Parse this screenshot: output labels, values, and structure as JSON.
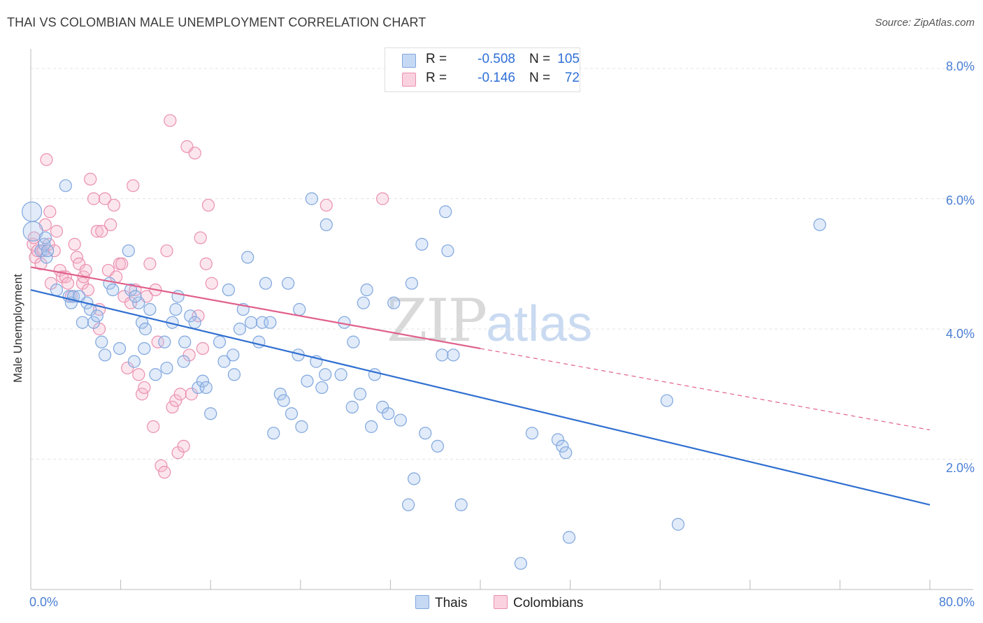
{
  "header": {
    "title": "THAI VS COLOMBIAN MALE UNEMPLOYMENT CORRELATION CHART",
    "source": "Source: ZipAtlas.com"
  },
  "watermark": {
    "zip": "ZIP",
    "atlas": "atlas"
  },
  "legend": {
    "rows": [
      {
        "r_label": "R =",
        "r_value": "-0.508",
        "n_label": "N =",
        "n_value": "105",
        "color": "#a9c6ee"
      },
      {
        "r_label": "R =",
        "r_value": "-0.146",
        "n_label": "N =",
        "n_value": "72",
        "color": "#f5b8cc"
      }
    ],
    "bottom": [
      {
        "label": "Thais",
        "color": "#a9c6ee"
      },
      {
        "label": "Colombians",
        "color": "#f5b8cc"
      }
    ]
  },
  "colors": {
    "thai_fill": "rgba(169,198,238,0.35)",
    "thai_stroke": "#7fa6de",
    "thai_line": "#2f6fd0",
    "col_fill": "rgba(245,184,204,0.35)",
    "col_stroke": "#ea8fb0",
    "col_line": "#e0608a",
    "grid": "#e3e3e3",
    "tick_text": "#4a7fd4"
  },
  "chart_data": {
    "type": "scatter",
    "title": "THAI VS COLOMBIAN MALE UNEMPLOYMENT CORRELATION CHART",
    "xlabel": "",
    "ylabel": "Male Unemployment",
    "xlim": [
      0,
      80
    ],
    "ylim": [
      0,
      8.3
    ],
    "x_tick_labels": [
      "0.0%",
      "80.0%"
    ],
    "y_ticks": [
      2,
      4,
      6,
      8
    ],
    "y_tick_labels": [
      "2.0%",
      "4.0%",
      "6.0%",
      "8.0%"
    ],
    "grid": true,
    "legend_position": "top-center",
    "series": [
      {
        "name": "Thais",
        "r": -0.508,
        "n": 105,
        "trend": {
          "x": [
            0,
            80
          ],
          "y": [
            4.6,
            1.3
          ],
          "dashed_from": null
        },
        "points": [
          [
            0.1,
            5.8
          ],
          [
            0.2,
            5.5
          ],
          [
            0.9,
            5.2
          ],
          [
            1.2,
            5.3
          ],
          [
            1.3,
            5.4
          ],
          [
            1.4,
            5.1
          ],
          [
            1.5,
            5.2
          ],
          [
            2.3,
            4.6
          ],
          [
            3.1,
            6.2
          ],
          [
            3.4,
            4.5
          ],
          [
            3.6,
            4.4
          ],
          [
            3.8,
            4.5
          ],
          [
            4.3,
            4.5
          ],
          [
            4.6,
            4.1
          ],
          [
            5.0,
            4.4
          ],
          [
            5.3,
            4.3
          ],
          [
            5.6,
            4.1
          ],
          [
            6.3,
            3.8
          ],
          [
            6.6,
            3.6
          ],
          [
            7.0,
            4.7
          ],
          [
            7.3,
            4.6
          ],
          [
            7.9,
            3.7
          ],
          [
            8.7,
            5.2
          ],
          [
            8.9,
            4.6
          ],
          [
            9.2,
            3.5
          ],
          [
            9.6,
            4.4
          ],
          [
            9.9,
            4.1
          ],
          [
            10.1,
            3.7
          ],
          [
            10.2,
            4.0
          ],
          [
            10.6,
            4.3
          ],
          [
            11.1,
            3.3
          ],
          [
            11.9,
            3.8
          ],
          [
            12.1,
            3.4
          ],
          [
            12.6,
            4.1
          ],
          [
            13.1,
            4.5
          ],
          [
            13.6,
            3.5
          ],
          [
            13.7,
            3.8
          ],
          [
            14.2,
            4.2
          ],
          [
            14.6,
            4.1
          ],
          [
            14.9,
            3.1
          ],
          [
            15.3,
            3.2
          ],
          [
            15.6,
            3.1
          ],
          [
            16.0,
            2.7
          ],
          [
            16.8,
            3.8
          ],
          [
            17.2,
            3.5
          ],
          [
            17.6,
            4.6
          ],
          [
            18.0,
            3.6
          ],
          [
            18.6,
            4.0
          ],
          [
            18.9,
            4.3
          ],
          [
            19.3,
            5.1
          ],
          [
            19.6,
            4.1
          ],
          [
            20.3,
            3.8
          ],
          [
            20.6,
            4.1
          ],
          [
            20.9,
            4.7
          ],
          [
            21.3,
            4.1
          ],
          [
            21.6,
            2.4
          ],
          [
            22.2,
            3.0
          ],
          [
            22.5,
            2.9
          ],
          [
            22.9,
            4.7
          ],
          [
            23.2,
            2.7
          ],
          [
            23.8,
            3.6
          ],
          [
            23.9,
            4.3
          ],
          [
            24.1,
            2.5
          ],
          [
            24.6,
            3.2
          ],
          [
            25.0,
            6.0
          ],
          [
            25.4,
            3.5
          ],
          [
            25.9,
            3.1
          ],
          [
            26.2,
            3.3
          ],
          [
            26.3,
            5.6
          ],
          [
            27.6,
            3.3
          ],
          [
            27.9,
            4.1
          ],
          [
            28.6,
            2.8
          ],
          [
            28.7,
            3.8
          ],
          [
            29.3,
            3.0
          ],
          [
            29.6,
            4.4
          ],
          [
            29.9,
            4.6
          ],
          [
            30.3,
            2.5
          ],
          [
            30.6,
            3.3
          ],
          [
            31.3,
            2.8
          ],
          [
            31.8,
            2.7
          ],
          [
            32.3,
            4.4
          ],
          [
            32.9,
            2.6
          ],
          [
            33.6,
            1.3
          ],
          [
            33.9,
            4.7
          ],
          [
            34.1,
            1.7
          ],
          [
            34.8,
            5.3
          ],
          [
            35.1,
            2.4
          ],
          [
            36.2,
            2.2
          ],
          [
            36.6,
            3.6
          ],
          [
            36.9,
            5.8
          ],
          [
            37.1,
            5.2
          ],
          [
            37.6,
            3.6
          ],
          [
            38.3,
            1.3
          ],
          [
            43.6,
            0.4
          ],
          [
            44.6,
            2.4
          ],
          [
            46.9,
            2.3
          ],
          [
            47.3,
            2.2
          ],
          [
            47.6,
            2.1
          ],
          [
            47.9,
            0.8
          ],
          [
            56.6,
            2.9
          ],
          [
            57.6,
            1.0
          ],
          [
            70.2,
            5.6
          ],
          [
            5.9,
            4.2
          ],
          [
            12.9,
            4.3
          ],
          [
            18.1,
            3.3
          ],
          [
            9.3,
            4.5
          ]
        ]
      },
      {
        "name": "Colombians",
        "r": -0.146,
        "n": 72,
        "trend": {
          "x": [
            0,
            80
          ],
          "y": [
            4.95,
            2.45
          ],
          "dashed_from": 40
        },
        "points": [
          [
            0.2,
            5.3
          ],
          [
            0.3,
            5.4
          ],
          [
            0.4,
            5.1
          ],
          [
            0.6,
            5.2
          ],
          [
            0.9,
            5.0
          ],
          [
            1.1,
            5.2
          ],
          [
            1.3,
            5.6
          ],
          [
            1.4,
            6.6
          ],
          [
            1.6,
            5.3
          ],
          [
            1.7,
            5.8
          ],
          [
            1.8,
            4.7
          ],
          [
            2.1,
            5.2
          ],
          [
            2.3,
            5.5
          ],
          [
            2.6,
            4.9
          ],
          [
            2.8,
            4.8
          ],
          [
            3.1,
            4.8
          ],
          [
            3.3,
            4.7
          ],
          [
            3.6,
            4.5
          ],
          [
            3.9,
            5.3
          ],
          [
            4.1,
            5.1
          ],
          [
            4.3,
            5.0
          ],
          [
            4.6,
            4.7
          ],
          [
            4.7,
            4.8
          ],
          [
            4.9,
            4.9
          ],
          [
            5.1,
            4.6
          ],
          [
            5.3,
            6.3
          ],
          [
            5.6,
            6.0
          ],
          [
            5.9,
            5.5
          ],
          [
            6.1,
            4.3
          ],
          [
            6.3,
            5.5
          ],
          [
            6.6,
            6.0
          ],
          [
            6.9,
            4.9
          ],
          [
            7.1,
            5.6
          ],
          [
            7.4,
            5.9
          ],
          [
            7.6,
            4.8
          ],
          [
            7.9,
            5.0
          ],
          [
            8.1,
            5.0
          ],
          [
            8.3,
            4.5
          ],
          [
            8.6,
            3.4
          ],
          [
            8.9,
            4.4
          ],
          [
            9.1,
            6.2
          ],
          [
            9.3,
            4.6
          ],
          [
            9.6,
            3.3
          ],
          [
            9.9,
            3.0
          ],
          [
            10.1,
            3.1
          ],
          [
            10.3,
            4.5
          ],
          [
            10.6,
            5.0
          ],
          [
            10.9,
            2.5
          ],
          [
            11.1,
            4.6
          ],
          [
            11.3,
            3.8
          ],
          [
            11.6,
            1.9
          ],
          [
            11.9,
            1.8
          ],
          [
            12.1,
            5.2
          ],
          [
            12.4,
            7.2
          ],
          [
            12.6,
            2.8
          ],
          [
            12.9,
            2.9
          ],
          [
            13.1,
            2.1
          ],
          [
            13.3,
            3.0
          ],
          [
            13.6,
            2.2
          ],
          [
            13.9,
            6.8
          ],
          [
            14.1,
            3.6
          ],
          [
            14.3,
            3.0
          ],
          [
            14.6,
            6.7
          ],
          [
            14.9,
            4.2
          ],
          [
            15.1,
            5.4
          ],
          [
            15.3,
            3.7
          ],
          [
            15.6,
            5.0
          ],
          [
            15.8,
            5.9
          ],
          [
            16.1,
            4.7
          ],
          [
            26.3,
            5.9
          ],
          [
            31.3,
            6.0
          ],
          [
            6.1,
            4.0
          ]
        ]
      }
    ]
  }
}
